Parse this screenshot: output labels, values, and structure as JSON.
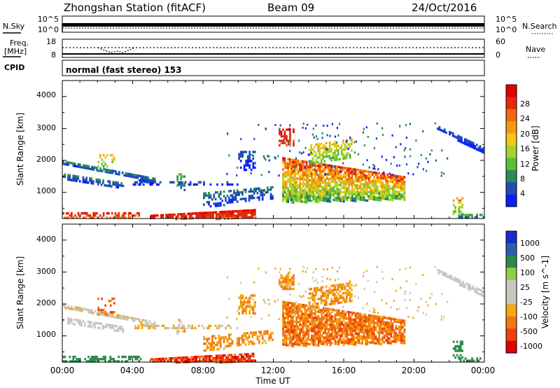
{
  "header": {
    "station": "Zhongshan Station (fitACF)",
    "beam": "Beam 09",
    "date": "24/Oct/2016"
  },
  "status_panels": {
    "nsky_label": "N.Sky",
    "nsky_ticks": [
      "10^5",
      "10^0"
    ],
    "nsearch_ticks": [
      "10^5",
      "10^0"
    ],
    "nsearch_label": "N.Search",
    "freq_label_top": "Freq.",
    "freq_label_bottom": "[MHz]",
    "freq_ticks": [
      "18",
      "8"
    ],
    "nave_ticks": [
      "60",
      "0"
    ],
    "nave_label": "Nave",
    "cpid_label": "CPID",
    "cpid_text": "normal (fast stereo) 153"
  },
  "colors": {
    "power_scale": [
      "#0a1eff",
      "#1f4fb5",
      "#2c8b57",
      "#5bbf3a",
      "#a8d12a",
      "#f5c518",
      "#f59a10",
      "#f26a0c",
      "#e8280a",
      "#e00000"
    ],
    "velocity_scale": [
      "#e00000",
      "#f04010",
      "#f07a10",
      "#f5a814",
      "#c8c8c0",
      "#c8c8c0",
      "#8ccf45",
      "#2f8a4a",
      "#2a5fb0",
      "#1a2ad0"
    ]
  },
  "chart_data": [
    {
      "type": "heatmap",
      "title": "Power",
      "ylabel": "Slant Range [km]",
      "colorbar_label": "Power [dB]",
      "colorbar_ticks": [
        "4",
        "8",
        "12",
        "16",
        "20",
        "24",
        "28"
      ],
      "yticks": [
        "1000",
        "2000",
        "3000",
        "4000"
      ],
      "ylim": [
        180,
        4500
      ],
      "xlim": [
        0,
        24
      ]
    },
    {
      "type": "heatmap",
      "title": "Velocity",
      "ylabel": "Slant Range [km]",
      "colorbar_label": "Velocity [m s^-1]",
      "colorbar_ticks": [
        "-1000",
        "-500",
        "-100",
        "-25",
        "25",
        "100",
        "500",
        "1000"
      ],
      "yticks": [
        "1000",
        "2000",
        "3000",
        "4000"
      ],
      "ylim": [
        180,
        4500
      ],
      "xlim": [
        0,
        24
      ],
      "xlabel": "Time UT",
      "xticks": [
        "00:00",
        "04:00",
        "08:00",
        "12:00",
        "16:00",
        "20:00",
        "00:00"
      ]
    }
  ]
}
